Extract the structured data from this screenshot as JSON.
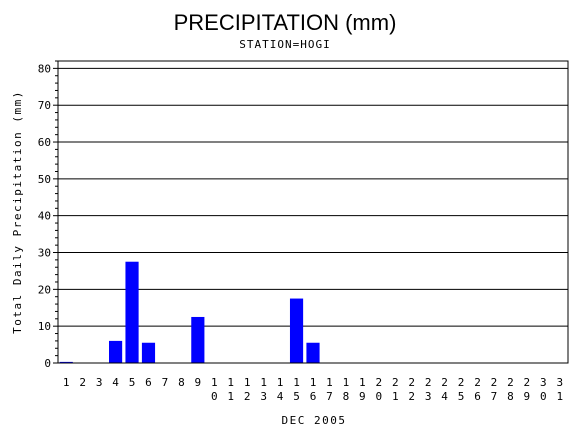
{
  "chart_data": {
    "type": "bar",
    "title": "PRECIPITATION (mm)",
    "subtitle": "STATION=HOGI",
    "xlabel": "DEC 2005",
    "ylabel": "Total Daily Precipitation (mm)",
    "ylim": [
      0,
      82
    ],
    "yticks": [
      0,
      10,
      20,
      30,
      40,
      50,
      60,
      70,
      80
    ],
    "grid": true,
    "bar_color": "#0000ff",
    "categories": [
      "1",
      "2",
      "3",
      "4",
      "5",
      "6",
      "7",
      "8",
      "9",
      "10",
      "11",
      "12",
      "13",
      "14",
      "15",
      "16",
      "17",
      "18",
      "19",
      "20",
      "21",
      "22",
      "23",
      "24",
      "25",
      "26",
      "27",
      "28",
      "29",
      "30",
      "31"
    ],
    "values": [
      0.3,
      0,
      0,
      6,
      27.5,
      5.5,
      0,
      0,
      12.5,
      0,
      0,
      0,
      0,
      0,
      17.5,
      5.5,
      0,
      0,
      0,
      0,
      0,
      0,
      0,
      0,
      0,
      0,
      0,
      0,
      0,
      0,
      0
    ]
  }
}
